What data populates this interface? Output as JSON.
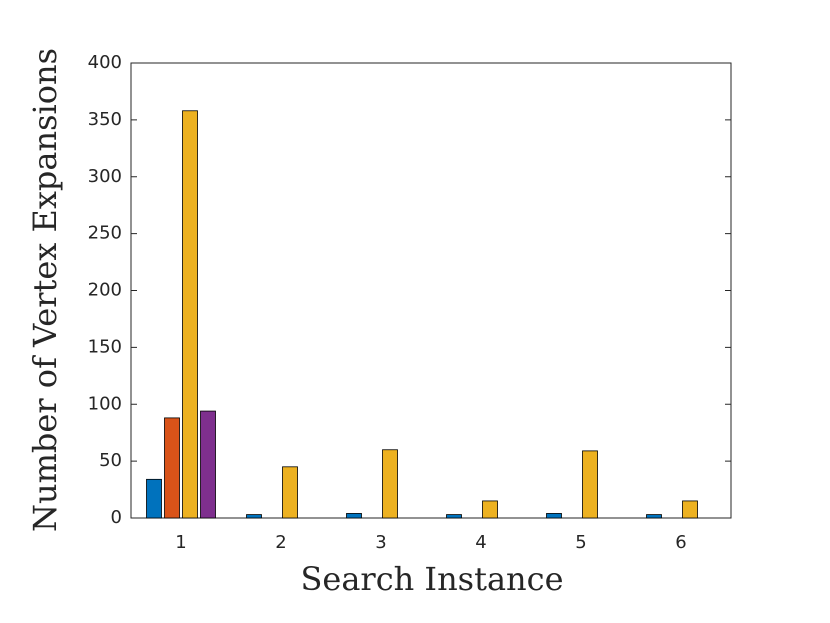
{
  "chart_data": {
    "type": "bar",
    "xlabel": "Search Instance",
    "ylabel": "Number of Vertex Expansions",
    "categories": [
      "1",
      "2",
      "3",
      "4",
      "5",
      "6"
    ],
    "series": [
      {
        "color": "#0072bd",
        "values": [
          34,
          3,
          4,
          3,
          4,
          3
        ]
      },
      {
        "color": "#d95319",
        "values": [
          88,
          0,
          0,
          0,
          0,
          0
        ]
      },
      {
        "color": "#edb120",
        "values": [
          358,
          45,
          60,
          15,
          59,
          15
        ]
      },
      {
        "color": "#7e2f8e",
        "values": [
          94,
          0,
          0,
          0,
          0,
          0
        ]
      }
    ],
    "ylim": [
      0,
      400
    ],
    "yticks": [
      0,
      50,
      100,
      150,
      200,
      250,
      300,
      350,
      400
    ],
    "grid": false
  }
}
